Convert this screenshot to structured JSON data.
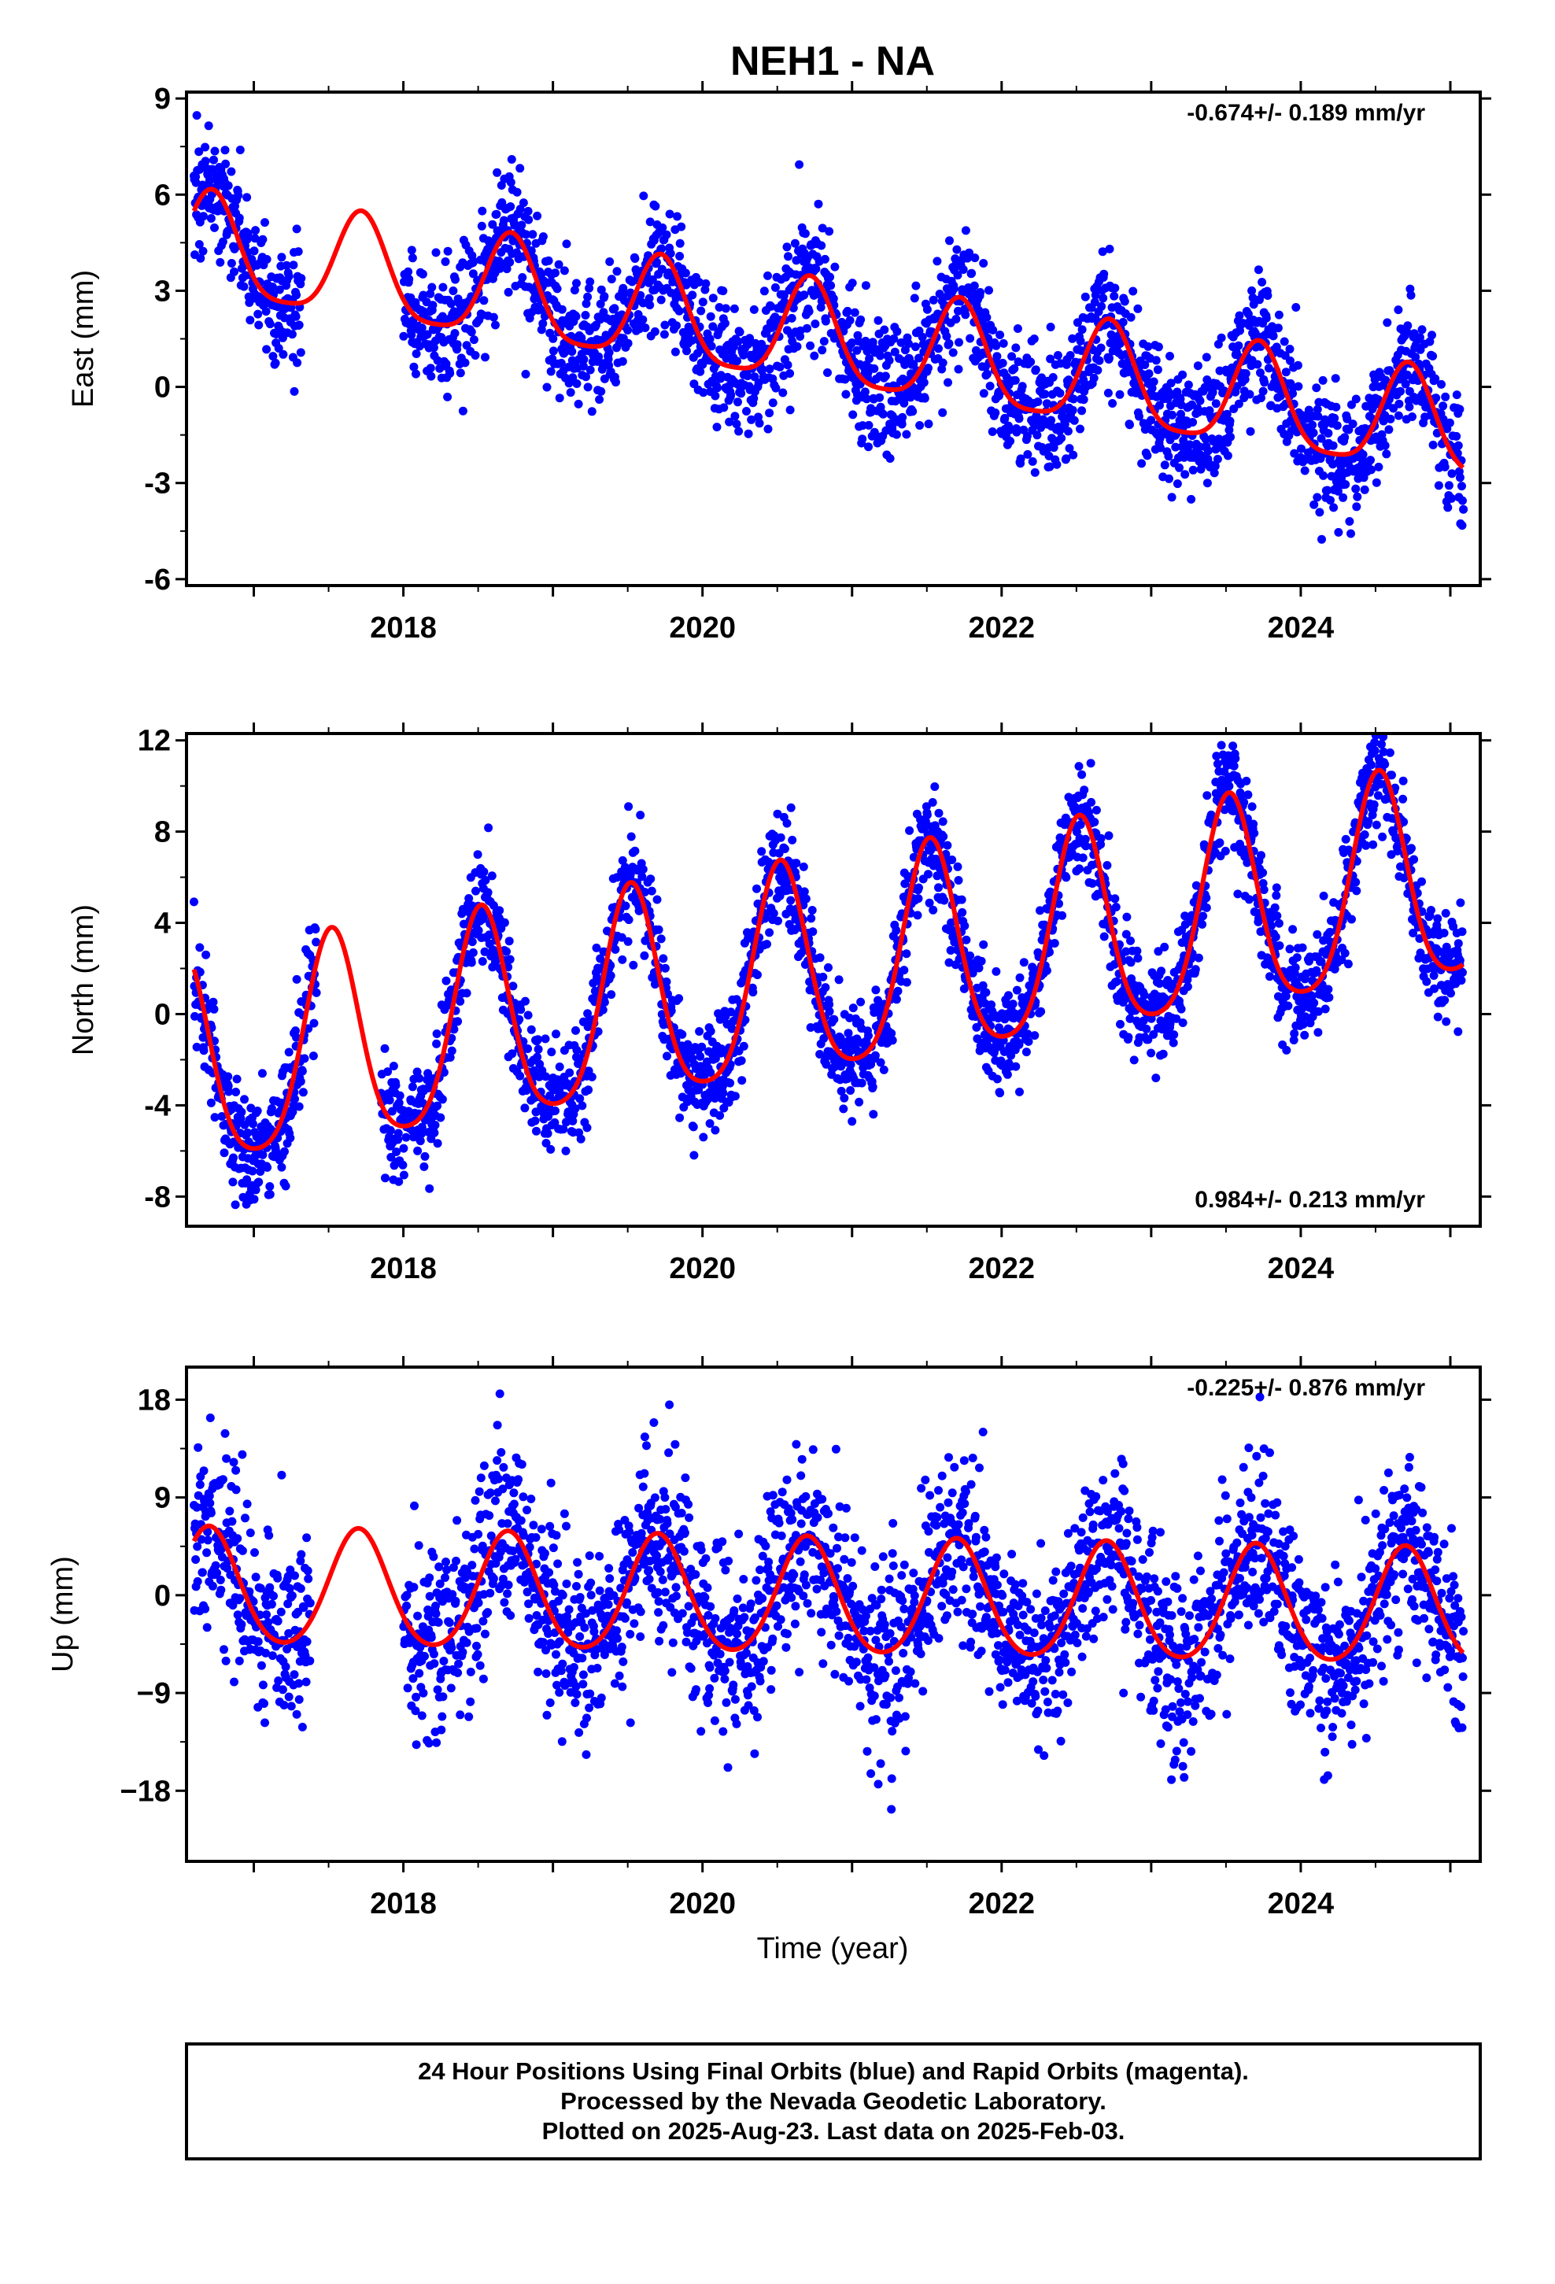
{
  "title": "NEH1 - NA",
  "xlabel": "Time (year)",
  "footer": {
    "line1": "24 Hour Positions Using Final Orbits (blue) and Rapid Orbits (magenta).",
    "line2": "Processed by the Nevada Geodetic Laboratory.",
    "line3": "Plotted on 2025-Aug-23. Last data on 2025-Feb-03."
  },
  "colors": {
    "points": "#0000ff",
    "model": "#ff0000",
    "axes": "#000000"
  },
  "chart_data": [
    {
      "type": "scatter",
      "component": "East",
      "ylabel": "East (mm)",
      "rate_label": "-0.674+/- 0.189 mm/yr",
      "rate_position": "top-right",
      "xlim": [
        2016.55,
        2025.2
      ],
      "ylim": [
        -6.2,
        9.2
      ],
      "yticks": [
        9,
        6,
        3,
        0,
        -3,
        -6
      ],
      "ytick_labels": [
        "9",
        "6",
        "3",
        "0",
        "-3",
        "-6"
      ],
      "xticks": [
        2018,
        2020,
        2022,
        2024
      ],
      "xtick_labels": [
        "2018",
        "2020",
        "2022",
        "2024"
      ],
      "data_start": 2016.6,
      "data_end": 2025.09,
      "model": {
        "offset_at_start": 4.3,
        "rate_mm_yr": -0.674,
        "annual_amplitude": 1.6,
        "annual_peak_phase": 0.72,
        "semiannual_amplitude": 0.35
      },
      "scatter_sigma": 1.0,
      "gaps": [
        [
          2017.32,
          2018.0
        ]
      ]
    },
    {
      "type": "scatter",
      "component": "North",
      "ylabel": "North (mm)",
      "rate_label": "0.984+/- 0.213 mm/yr",
      "rate_position": "bottom-right",
      "xlim": [
        2016.55,
        2025.2
      ],
      "ylim": [
        -9.3,
        12.3
      ],
      "yticks": [
        12,
        8,
        4,
        0,
        -4,
        -8
      ],
      "ytick_labels": [
        "12",
        "8",
        "4",
        "0",
        "-4",
        "-8"
      ],
      "xticks": [
        2018,
        2020,
        2022,
        2024
      ],
      "xtick_labels": [
        "2018",
        "2020",
        "2022",
        "2024"
      ],
      "data_start": 2016.6,
      "data_end": 2025.09,
      "model": {
        "offset_at_start": -2.5,
        "rate_mm_yr": 0.984,
        "annual_amplitude": 4.6,
        "annual_peak_phase": 0.52,
        "semiannual_amplitude": 0.8
      },
      "scatter_sigma": 1.2,
      "gaps": [
        [
          2017.42,
          2017.85
        ]
      ]
    },
    {
      "type": "scatter",
      "component": "Up",
      "ylabel": "Up (mm)",
      "rate_label": "-0.225+/- 0.876 mm/yr",
      "rate_position": "top-right",
      "xlim": [
        2016.55,
        2025.2
      ],
      "ylim": [
        -24.5,
        21.0
      ],
      "yticks": [
        18,
        9,
        0,
        -9,
        -18
      ],
      "ytick_labels": [
        "18",
        "9",
        "0",
        "−18"
      ],
      "ytick_labels_all": [
        "18",
        "9",
        "0",
        "−9",
        "−18"
      ],
      "xticks": [
        2018,
        2020,
        2022,
        2024
      ],
      "xtick_labels": [
        "2018",
        "2020",
        "2022",
        "2024"
      ],
      "data_start": 2016.6,
      "data_end": 2025.09,
      "model": {
        "offset_at_start": 0.5,
        "rate_mm_yr": -0.225,
        "annual_amplitude": 5.3,
        "annual_peak_phase": 0.7,
        "semiannual_amplitude": 0.6
      },
      "scatter_sigma": 4.2,
      "gaps": [
        [
          2017.38,
          2018.0
        ]
      ]
    }
  ]
}
